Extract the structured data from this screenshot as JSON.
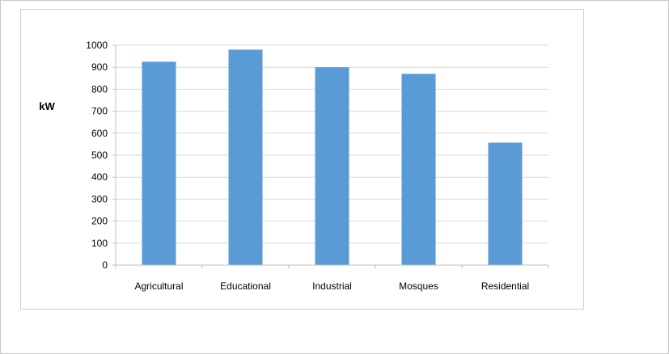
{
  "chart_data": {
    "type": "bar",
    "title": "",
    "xlabel": "",
    "ylabel": "kW",
    "categories": [
      "Agricultural",
      "Educational",
      "Industrial",
      "Mosques",
      "Residential"
    ],
    "values": [
      925,
      980,
      900,
      870,
      557
    ],
    "ylim": [
      0,
      1000
    ],
    "yticks": [
      "0",
      "100",
      "200",
      "300",
      "400",
      "500",
      "600",
      "700",
      "800",
      "900",
      "1000"
    ],
    "grid": true,
    "legend": "none",
    "bar_color": "#5b9bd5",
    "gridline_color": "#d9d9d9"
  }
}
